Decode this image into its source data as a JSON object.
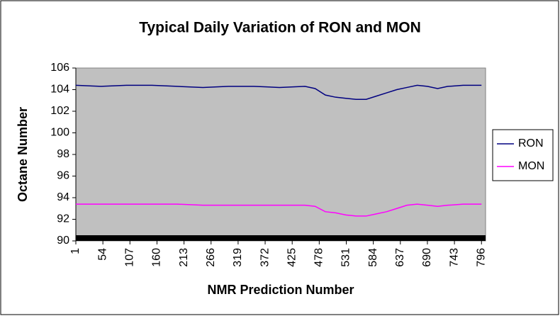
{
  "chart_data": {
    "type": "line",
    "title": "Typical Daily Variation of RON and MON",
    "x_label": "NMR Prediction Number",
    "y_label": "Octane Number",
    "x": [
      1,
      50,
      100,
      150,
      200,
      250,
      300,
      350,
      400,
      450,
      470,
      490,
      510,
      530,
      550,
      570,
      590,
      610,
      630,
      650,
      670,
      690,
      710,
      730,
      760,
      796
    ],
    "series": [
      {
        "name": "RON",
        "color": "#000080",
        "values": [
          104.4,
          104.3,
          104.4,
          104.4,
          104.3,
          104.2,
          104.3,
          104.3,
          104.2,
          104.3,
          104.1,
          103.5,
          103.3,
          103.2,
          103.1,
          103.1,
          103.4,
          103.7,
          104.0,
          104.2,
          104.4,
          104.3,
          104.1,
          104.3,
          104.4,
          104.4
        ]
      },
      {
        "name": "MON",
        "color": "#ff00ff",
        "values": [
          93.4,
          93.4,
          93.4,
          93.4,
          93.4,
          93.3,
          93.3,
          93.3,
          93.3,
          93.3,
          93.2,
          92.7,
          92.6,
          92.4,
          92.3,
          92.3,
          92.5,
          92.7,
          93.0,
          93.3,
          93.4,
          93.3,
          93.2,
          93.3,
          93.4,
          93.4
        ]
      }
    ],
    "xlim": [
      1,
      804
    ],
    "xticks": [
      1,
      54,
      107,
      160,
      213,
      266,
      319,
      372,
      425,
      478,
      531,
      584,
      637,
      690,
      743,
      796
    ],
    "ylim": [
      90,
      106
    ],
    "yticks": [
      90,
      92,
      94,
      96,
      98,
      100,
      102,
      104,
      106
    ],
    "grid": false,
    "legend": "right",
    "plot_background": "#c0c0c0"
  }
}
